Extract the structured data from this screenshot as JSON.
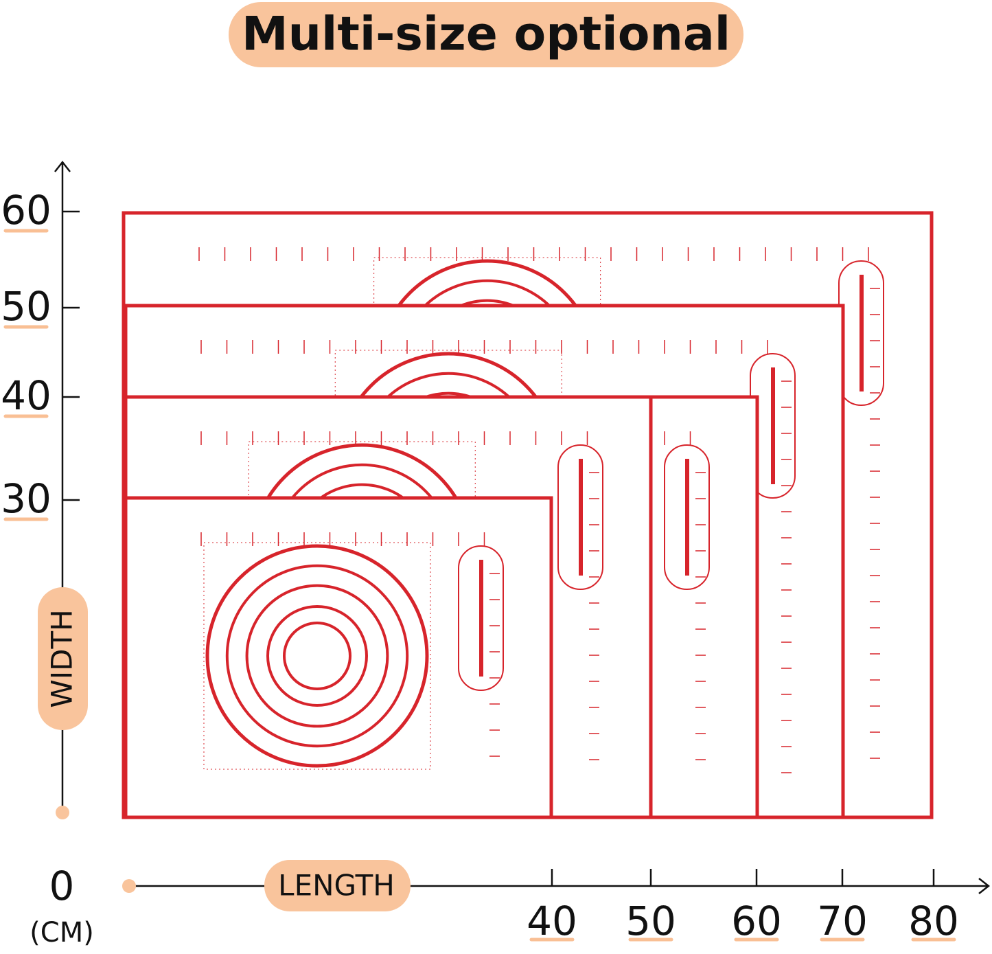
{
  "title": "Multi-size optional",
  "y_axis": {
    "label": "WIDTH",
    "ticks": [
      "60",
      "50",
      "40",
      "30"
    ]
  },
  "x_axis": {
    "label": "LENGTH",
    "ticks": [
      "40",
      "50",
      "60",
      "70",
      "80"
    ]
  },
  "origin": {
    "label": "0",
    "unit": "(CM)"
  }
}
